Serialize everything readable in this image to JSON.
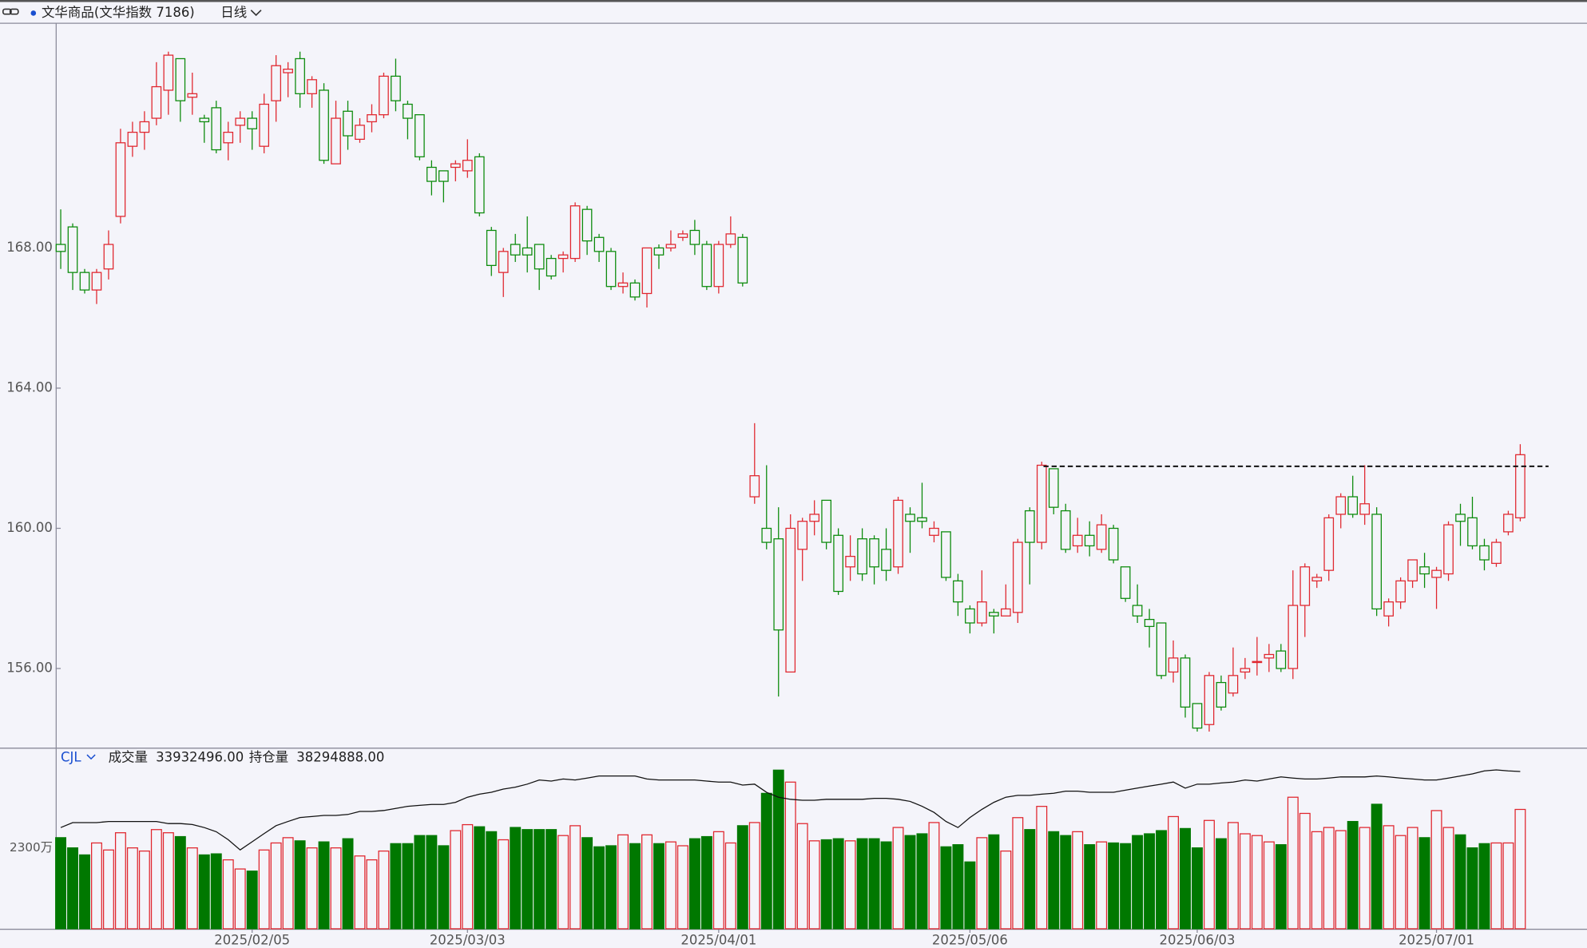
{
  "chart_data": [
    {
      "type": "candlestick",
      "title": "文华商品(文华指数 7186)",
      "period": "日线",
      "up_color": "#e0262e",
      "down_color": "#0a8a0a",
      "categories": [
        null,
        null,
        null,
        null,
        null,
        null,
        null,
        null,
        null,
        null,
        null,
        null,
        null,
        null,
        null,
        null,
        "2025/02/05",
        null,
        null,
        null,
        null,
        null,
        null,
        null,
        null,
        null,
        null,
        null,
        null,
        null,
        null,
        null,
        null,
        null,
        "2025/03/03",
        null,
        null,
        null,
        null,
        null,
        null,
        null,
        null,
        null,
        null,
        null,
        null,
        null,
        null,
        null,
        null,
        null,
        null,
        null,
        null,
        "2025/04/01",
        null,
        null,
        null,
        null,
        null,
        null,
        null,
        null,
        null,
        null,
        null,
        null,
        null,
        null,
        null,
        null,
        null,
        null,
        null,
        null,
        "2025/05/06",
        null,
        null,
        null,
        null,
        null,
        null,
        null,
        null,
        null,
        null,
        null,
        null,
        null,
        null,
        null,
        null,
        null,
        null,
        "2025/06/03",
        null,
        null,
        null,
        null,
        null,
        null,
        null,
        null,
        null,
        null,
        null,
        null,
        null,
        null,
        null,
        null,
        null,
        null,
        null,
        "2025/07/01",
        null,
        null,
        null,
        null,
        null,
        null,
        null
      ],
      "open": [
        168.1,
        168.6,
        167.3,
        166.8,
        167.4,
        168.9,
        170.9,
        171.3,
        171.7,
        172.5,
        173.4,
        172.3,
        171.7,
        172.0,
        171.0,
        171.5,
        171.7,
        170.9,
        172.2,
        173.0,
        173.4,
        172.4,
        172.5,
        170.4,
        171.9,
        171.1,
        171.6,
        171.8,
        172.9,
        172.1,
        171.8,
        170.3,
        170.2,
        170.3,
        170.2,
        170.6,
        168.5,
        167.3,
        168.1,
        168.0,
        168.1,
        167.7,
        167.7,
        167.7,
        169.1,
        168.3,
        167.9,
        166.9,
        167.0,
        166.7,
        168.0,
        168.0,
        168.3,
        168.5,
        168.1,
        166.9,
        168.1,
        168.3,
        160.9,
        160.0,
        159.7,
        155.9,
        159.4,
        160.2,
        160.8,
        159.8,
        158.9,
        159.7,
        159.7,
        159.4,
        158.9,
        160.4,
        160.3,
        159.8,
        159.9,
        158.5,
        157.7,
        157.3,
        157.6,
        157.5,
        157.6,
        160.5,
        159.6,
        161.7,
        160.5,
        159.5,
        159.8,
        159.4,
        160.0,
        158.9,
        157.8,
        157.4,
        157.3,
        155.9,
        156.3,
        155.0,
        154.4,
        155.6,
        155.3,
        155.9,
        156.2,
        156.3,
        156.5,
        156.0,
        157.8,
        158.5,
        158.8,
        160.4,
        160.9,
        160.4,
        160.4,
        157.5,
        157.9,
        158.5,
        158.9,
        158.6,
        158.7,
        160.4,
        160.3,
        159.5,
        159.0,
        159.9,
        160.3
      ],
      "high": [
        169.1,
        168.7,
        167.4,
        167.4,
        168.5,
        171.4,
        171.6,
        171.9,
        173.3,
        173.6,
        173.4,
        173.0,
        171.8,
        172.2,
        171.6,
        171.9,
        171.9,
        172.4,
        173.5,
        173.3,
        173.6,
        172.9,
        172.7,
        172.2,
        172.2,
        171.7,
        172.1,
        173.0,
        173.4,
        172.2,
        171.8,
        170.5,
        170.2,
        170.5,
        171.1,
        170.7,
        168.6,
        168.0,
        168.4,
        168.9,
        168.1,
        167.8,
        167.9,
        169.3,
        169.2,
        168.4,
        168.0,
        167.3,
        167.1,
        168.0,
        168.1,
        168.5,
        168.5,
        168.8,
        168.2,
        168.2,
        168.9,
        168.4,
        163.0,
        161.8,
        160.6,
        160.4,
        160.3,
        160.8,
        160.8,
        160.0,
        159.8,
        160.0,
        159.8,
        160.0,
        160.9,
        160.6,
        161.3,
        160.2,
        159.9,
        158.7,
        157.8,
        158.8,
        157.7,
        158.4,
        159.7,
        160.6,
        161.9,
        161.7,
        160.7,
        160.3,
        160.2,
        160.4,
        160.1,
        158.9,
        158.4,
        157.7,
        157.3,
        156.8,
        156.4,
        155.0,
        155.9,
        155.8,
        156.6,
        156.3,
        156.9,
        156.7,
        156.7,
        158.8,
        159.0,
        158.7,
        160.4,
        161.0,
        161.5,
        161.8,
        160.6,
        158.0,
        158.6,
        159.1,
        159.3,
        158.9,
        160.2,
        160.7,
        160.9,
        159.7,
        159.7,
        160.5,
        162.4
      ],
      "low": [
        167.4,
        166.8,
        166.7,
        166.4,
        167.1,
        168.7,
        170.6,
        170.8,
        171.5,
        171.8,
        171.6,
        171.8,
        171.0,
        170.7,
        170.5,
        171.0,
        170.8,
        170.7,
        171.6,
        172.3,
        172.0,
        172.0,
        170.4,
        170.4,
        170.8,
        171.0,
        171.3,
        171.7,
        171.9,
        171.1,
        170.5,
        169.5,
        169.3,
        169.9,
        170.0,
        168.9,
        167.2,
        166.6,
        167.6,
        167.3,
        166.8,
        167.1,
        167.3,
        167.6,
        167.8,
        167.6,
        166.8,
        166.7,
        166.5,
        166.3,
        167.4,
        167.9,
        168.2,
        167.8,
        166.8,
        166.7,
        168.0,
        166.9,
        160.7,
        159.4,
        155.2,
        155.9,
        158.5,
        159.8,
        159.4,
        158.1,
        158.5,
        158.5,
        158.4,
        158.5,
        158.7,
        159.3,
        160.0,
        159.6,
        158.5,
        157.5,
        157.0,
        157.2,
        157.0,
        157.5,
        157.3,
        158.4,
        159.4,
        160.4,
        159.3,
        159.3,
        159.2,
        159.3,
        159.0,
        157.9,
        157.3,
        156.6,
        155.7,
        155.6,
        154.6,
        154.2,
        154.2,
        154.8,
        155.2,
        155.7,
        155.8,
        155.9,
        155.9,
        155.7,
        156.9,
        158.3,
        158.5,
        160.0,
        160.3,
        160.1,
        157.5,
        157.2,
        157.7,
        158.3,
        158.3,
        157.7,
        158.5,
        159.5,
        159.4,
        158.8,
        158.9,
        159.8,
        160.2
      ],
      "close": [
        167.9,
        167.3,
        166.8,
        167.3,
        168.1,
        171.0,
        171.3,
        171.6,
        172.6,
        173.5,
        172.2,
        172.4,
        171.6,
        170.8,
        171.3,
        171.7,
        171.4,
        172.1,
        173.2,
        173.1,
        172.4,
        172.8,
        170.5,
        171.7,
        171.2,
        171.5,
        171.8,
        172.9,
        172.2,
        171.7,
        170.6,
        169.9,
        169.9,
        170.4,
        170.5,
        169.0,
        167.5,
        167.9,
        167.8,
        167.8,
        167.4,
        167.2,
        167.8,
        169.2,
        168.2,
        167.9,
        166.9,
        167.0,
        166.6,
        168.0,
        167.8,
        168.1,
        168.4,
        168.1,
        166.9,
        168.1,
        168.4,
        167.0,
        161.5,
        159.6,
        157.1,
        160.0,
        160.2,
        160.4,
        159.6,
        158.2,
        159.2,
        158.7,
        158.9,
        158.8,
        160.8,
        160.2,
        160.2,
        160.0,
        158.6,
        157.9,
        157.3,
        157.9,
        157.5,
        157.7,
        159.6,
        159.6,
        161.8,
        160.6,
        159.4,
        159.8,
        159.5,
        160.1,
        159.1,
        158.0,
        157.5,
        157.2,
        155.8,
        156.3,
        154.9,
        154.3,
        155.8,
        154.9,
        155.8,
        156.0,
        156.2,
        156.4,
        156.0,
        157.8,
        158.9,
        158.6,
        160.3,
        160.9,
        160.4,
        160.7,
        157.7,
        157.9,
        158.5,
        159.1,
        158.7,
        158.8,
        160.1,
        160.2,
        159.5,
        159.1,
        159.6,
        160.4,
        162.1
      ],
      "hline": 161.77,
      "ylim": [
        153.77,
        174.41
      ],
      "yticks": [
        {
          "value": 156,
          "label": "156.00"
        },
        {
          "value": 160,
          "label": "160.00"
        },
        {
          "value": 164,
          "label": "164.00"
        },
        {
          "value": 168,
          "label": "168.00"
        }
      ]
    },
    {
      "type": "bar",
      "indicator": "CJL",
      "series": [
        {
          "name": "成交量",
          "last_label": "33932496.00",
          "values": [
            25900000,
            23000000,
            21000000,
            24400000,
            22400000,
            27300000,
            23000000,
            22100000,
            28200000,
            27300000,
            26200000,
            23000000,
            21000000,
            21300000,
            19600000,
            17000000,
            16400000,
            22400000,
            24400000,
            25900000,
            25000000,
            23000000,
            24700000,
            23000000,
            25600000,
            20700000,
            19600000,
            22100000,
            24200000,
            24200000,
            26500000,
            26500000,
            23600000,
            27900000,
            29600000,
            29000000,
            27600000,
            25300000,
            28800000,
            28200000,
            28200000,
            28200000,
            26500000,
            29300000,
            25900000,
            23300000,
            23600000,
            26700000,
            24200000,
            26700000,
            24200000,
            24700000,
            23600000,
            25600000,
            26200000,
            27600000,
            24400000,
            29300000,
            30200000,
            38500000,
            45100000,
            41700000,
            29900000,
            25000000,
            25300000,
            25600000,
            25000000,
            25600000,
            25600000,
            24700000,
            28800000,
            26500000,
            27000000,
            30200000,
            23300000,
            23900000,
            19000000,
            25900000,
            26700000,
            22100000,
            31600000,
            28200000,
            34800000,
            27600000,
            26500000,
            27600000,
            23900000,
            24700000,
            24400000,
            24200000,
            26500000,
            27000000,
            27900000,
            31900000,
            28500000,
            23000000,
            30800000,
            25600000,
            30200000,
            27000000,
            26500000,
            24700000,
            23900000,
            37400000,
            32800000,
            27600000,
            28800000,
            27900000,
            30500000,
            28800000,
            35400000,
            29300000,
            26500000,
            28800000,
            25900000,
            33600000,
            28800000,
            26700000,
            23000000,
            24200000,
            24400000,
            24400000,
            33932496
          ]
        },
        {
          "name": "持仓量",
          "last_label": "38294888.00",
          "axis": "y2",
          "color": "#111111",
          "values": [
            35340000,
            35600000,
            35600000,
            35600000,
            35660000,
            35660000,
            35660000,
            35660000,
            35660000,
            35550000,
            35550000,
            35500000,
            35340000,
            35120000,
            34700000,
            34160000,
            34590000,
            35020000,
            35440000,
            35660000,
            35870000,
            35920000,
            35980000,
            35980000,
            36030000,
            36190000,
            36190000,
            36240000,
            36350000,
            36460000,
            36510000,
            36560000,
            36560000,
            36670000,
            36940000,
            37100000,
            37200000,
            37370000,
            37470000,
            37630000,
            37850000,
            37790000,
            37900000,
            37850000,
            37950000,
            38060000,
            38060000,
            38060000,
            38060000,
            37900000,
            37850000,
            37850000,
            37850000,
            37850000,
            37790000,
            37740000,
            37740000,
            37580000,
            37630000,
            37200000,
            36940000,
            36830000,
            36780000,
            36780000,
            36830000,
            36830000,
            36830000,
            36830000,
            36880000,
            36880000,
            36830000,
            36720000,
            36460000,
            36140000,
            35660000,
            35340000,
            35870000,
            36300000,
            36670000,
            36940000,
            37040000,
            37040000,
            37100000,
            37150000,
            37260000,
            37260000,
            37200000,
            37200000,
            37200000,
            37310000,
            37420000,
            37530000,
            37630000,
            37740000,
            37420000,
            37630000,
            37630000,
            37690000,
            37740000,
            37850000,
            37790000,
            37900000,
            38010000,
            37950000,
            37900000,
            37900000,
            37950000,
            38010000,
            38010000,
            38010000,
            38060000,
            38010000,
            37950000,
            37900000,
            37850000,
            37850000,
            37950000,
            38060000,
            38170000,
            38330000,
            38380000,
            38330000,
            38294888
          ]
        }
      ],
      "ylim": [
        0,
        51200000
      ],
      "yticks": [
        {
          "value": 23000000,
          "label": "2300万"
        }
      ],
      "y2lim": [
        30000000,
        39500000
      ]
    }
  ]
}
